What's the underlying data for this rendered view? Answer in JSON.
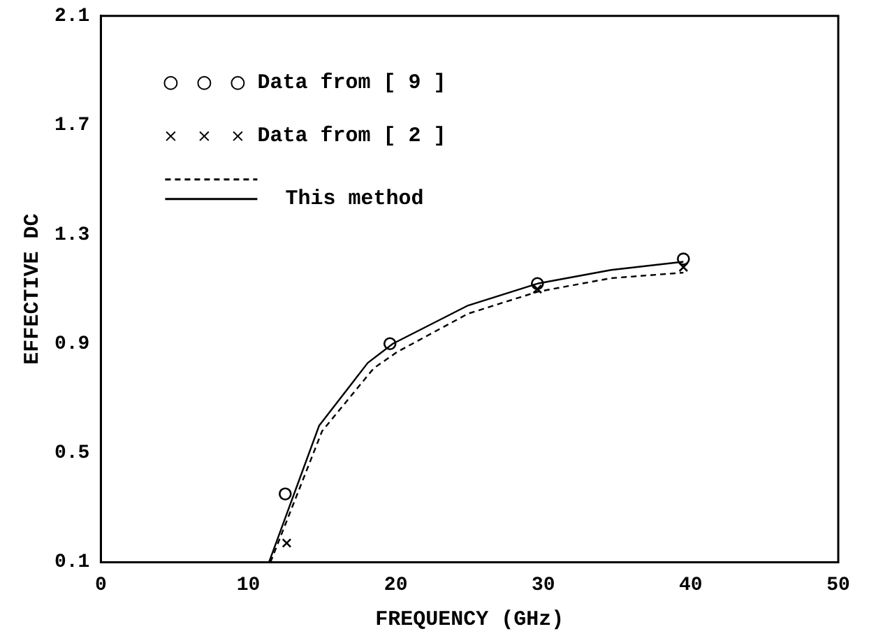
{
  "chart_data": {
    "type": "line",
    "xlabel": "FREQUENCY (GHz)",
    "ylabel": "EFFECTIVE DC",
    "xlim": [
      0,
      50
    ],
    "xticks": [
      0,
      10,
      20,
      30,
      40,
      50
    ],
    "ylim": [
      0.1,
      2.1
    ],
    "yticks": [
      0.1,
      0.5,
      0.9,
      1.3,
      1.7,
      2.1
    ],
    "grid": false,
    "legend": "top left",
    "series": [
      {
        "name": "Data from [ 9 ]",
        "type": "scatter",
        "marker": "circle",
        "color": "#000000",
        "x": [
          12.5,
          19.6,
          29.6,
          39.5
        ],
        "values": [
          0.35,
          0.9,
          1.12,
          1.21
        ]
      },
      {
        "name": "Data from [ 2 ]",
        "type": "scatter",
        "marker": "cross",
        "color": "#000000",
        "x": [
          12.6,
          29.6,
          39.5
        ],
        "values": [
          0.17,
          1.1,
          1.18
        ]
      },
      {
        "line_style": "dashed",
        "marker": "none",
        "color": "#000000",
        "x": [
          11.5,
          15.0,
          18.5,
          20.1,
          24.9,
          29.6,
          34.6,
          39.5
        ],
        "values": [
          0.1,
          0.58,
          0.81,
          0.87,
          1.01,
          1.09,
          1.14,
          1.16
        ]
      },
      {
        "name": "This method",
        "line_style": "solid",
        "marker": "none",
        "color": "#000000",
        "x": [
          11.4,
          14.8,
          18.1,
          19.8,
          24.9,
          29.6,
          34.6,
          39.5
        ],
        "values": [
          0.1,
          0.6,
          0.83,
          0.9,
          1.04,
          1.12,
          1.17,
          1.2
        ]
      }
    ]
  }
}
